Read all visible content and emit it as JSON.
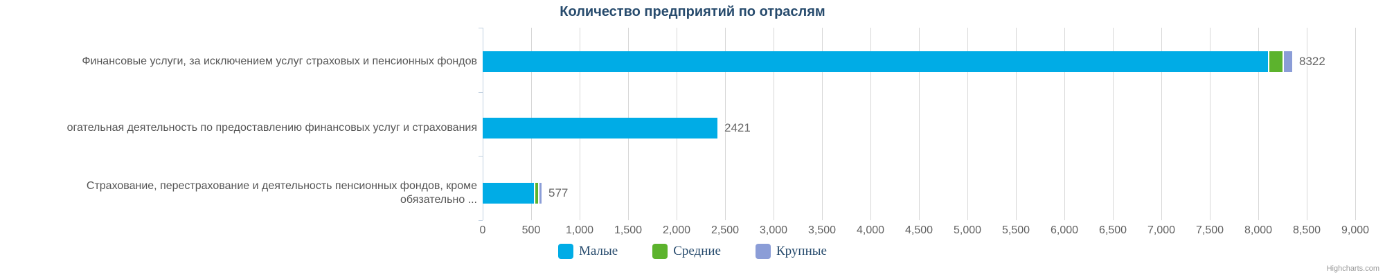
{
  "title": "Количество предприятий по отраслям",
  "credits": "Highcharts.com",
  "colors": {
    "axis_line": "#C0D0E0",
    "gridline": "#D7D7D7",
    "title_text": "#274B6D",
    "legend_text": "#274B6D",
    "category_text": "#555555",
    "axis_label_text": "#606060",
    "data_label_text": "#666666",
    "series_maliye": "#00ACE6",
    "series_sredniye": "#5CB32D",
    "series_krupnye": "#8B9DD7"
  },
  "chart_data": {
    "type": "bar",
    "orientation": "horizontal",
    "stacked": true,
    "title": "Количество предприятий по отраслям",
    "categories": [
      "Финансовые услуги, за исключением услуг страховых и пенсионных фондов",
      "огательная деятельность по предоставлению финансовых услуг и страхования",
      "Страхование, перестрахование и деятельность пенсионных фондов, кроме\nобязательно ..."
    ],
    "series": [
      {
        "name": "Малые",
        "color": "#00ACE6",
        "values": [
          8100,
          2421,
          530
        ]
      },
      {
        "name": "Средние",
        "color": "#5CB32D",
        "values": [
          135,
          0,
          29
        ]
      },
      {
        "name": "Крупные",
        "color": "#8B9DD7",
        "values": [
          87,
          0,
          18
        ]
      }
    ],
    "stack_totals": [
      "8322",
      "2421",
      "577"
    ],
    "value_axis": {
      "min": 0,
      "max": 9000,
      "tick_interval": 500,
      "tick_labels": [
        "0",
        "500",
        "1,000",
        "1,500",
        "2,000",
        "2,500",
        "3,000",
        "3,500",
        "4,000",
        "4,500",
        "5,000",
        "5,500",
        "6,000",
        "6,500",
        "7,000",
        "7,500",
        "8,000",
        "8,500",
        "9,000"
      ]
    },
    "legend": {
      "position": "bottom",
      "items": [
        "Малые",
        "Средние",
        "Крупные"
      ]
    },
    "grid": true
  }
}
